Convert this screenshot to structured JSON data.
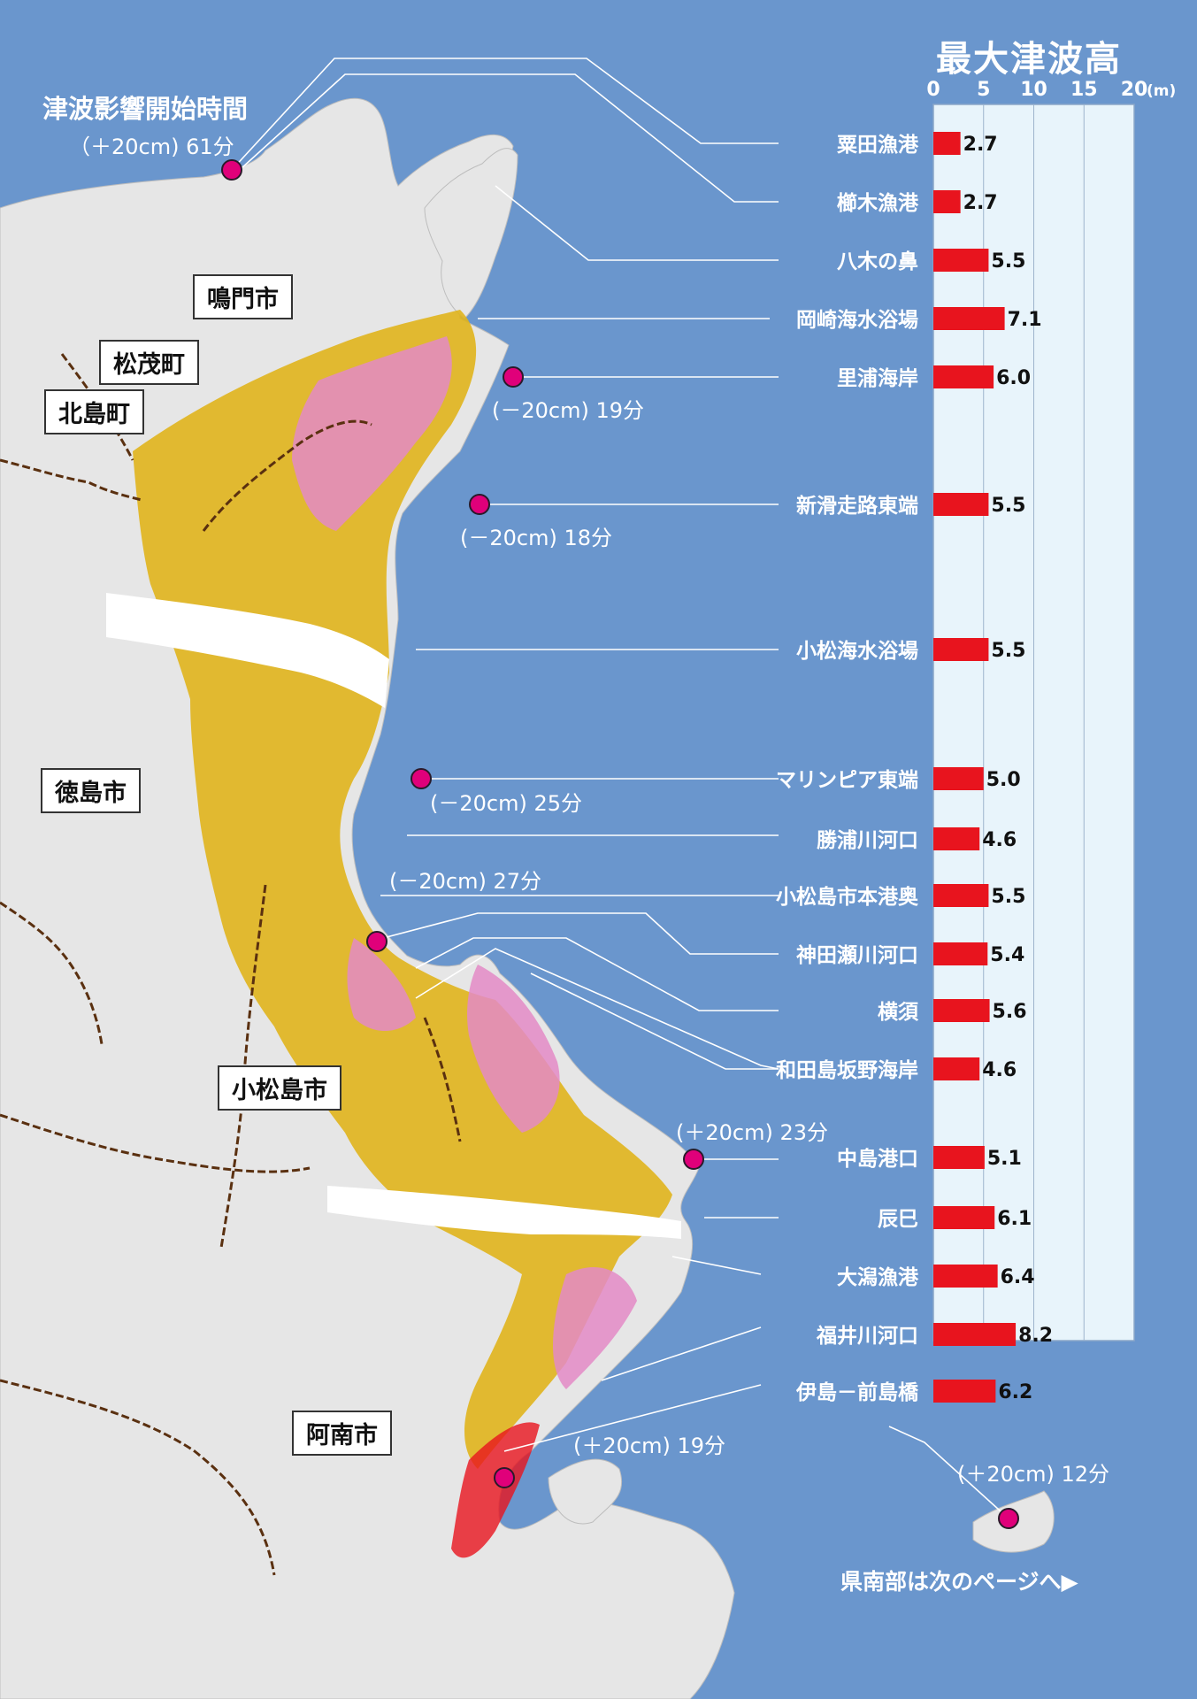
{
  "map": {
    "onset_title": "津波影響開始時間",
    "footer": "県南部は次のページへ▶",
    "cities": [
      {
        "label": "鳴門市"
      },
      {
        "label": "松茂町"
      },
      {
        "label": "北島町"
      },
      {
        "label": "徳島市"
      },
      {
        "label": "小松島市"
      },
      {
        "label": "阿南市"
      }
    ],
    "onset_points": [
      {
        "label": "（＋20cm) 61分"
      },
      {
        "label": "(－20cm) 19分"
      },
      {
        "label": "(－20cm) 18分"
      },
      {
        "label": "(－20cm) 25分"
      },
      {
        "label": "(－20cm) 27分"
      },
      {
        "label": "(＋20cm) 23分"
      },
      {
        "label": "(＋20cm) 19分"
      },
      {
        "label": "(＋20cm) 12分"
      }
    ],
    "colors": {
      "sea": "#6a96cd",
      "land": "#e8e8e8",
      "marker": "#e0007a",
      "bar": "#e8141e",
      "chart_bg": "#e8f4fb"
    }
  },
  "chart_data": {
    "type": "bar",
    "orientation": "horizontal",
    "title": "最大津波高",
    "unit": "(m)",
    "xlim": [
      0,
      20
    ],
    "ticks": [
      "0",
      "5",
      "10",
      "15",
      "20"
    ],
    "grid": true,
    "categories": [
      "粟田漁港",
      "櫛木漁港",
      "八木の鼻",
      "岡崎海水浴場",
      "里浦海岸",
      "新滑走路東端",
      "小松海水浴場",
      "マリンピア東端",
      "勝浦川河口",
      "小松島市本港奥",
      "神田瀬川河口",
      "横須",
      "和田島坂野海岸",
      "中島港口",
      "辰巳",
      "大潟漁港",
      "福井川河口",
      "伊島－前島橋"
    ],
    "values": [
      2.7,
      2.7,
      5.5,
      7.1,
      6.0,
      5.5,
      5.5,
      5.0,
      4.6,
      5.5,
      5.4,
      5.6,
      4.6,
      5.1,
      6.1,
      6.4,
      8.2,
      6.2
    ],
    "value_labels": [
      "2.7",
      "2.7",
      "5.5",
      "7.1",
      "6.0",
      "5.5",
      "5.5",
      "5.0",
      "4.6",
      "5.5",
      "5.4",
      "5.6",
      "4.6",
      "5.1",
      "6.1",
      "6.4",
      "8.2",
      "6.2"
    ]
  }
}
